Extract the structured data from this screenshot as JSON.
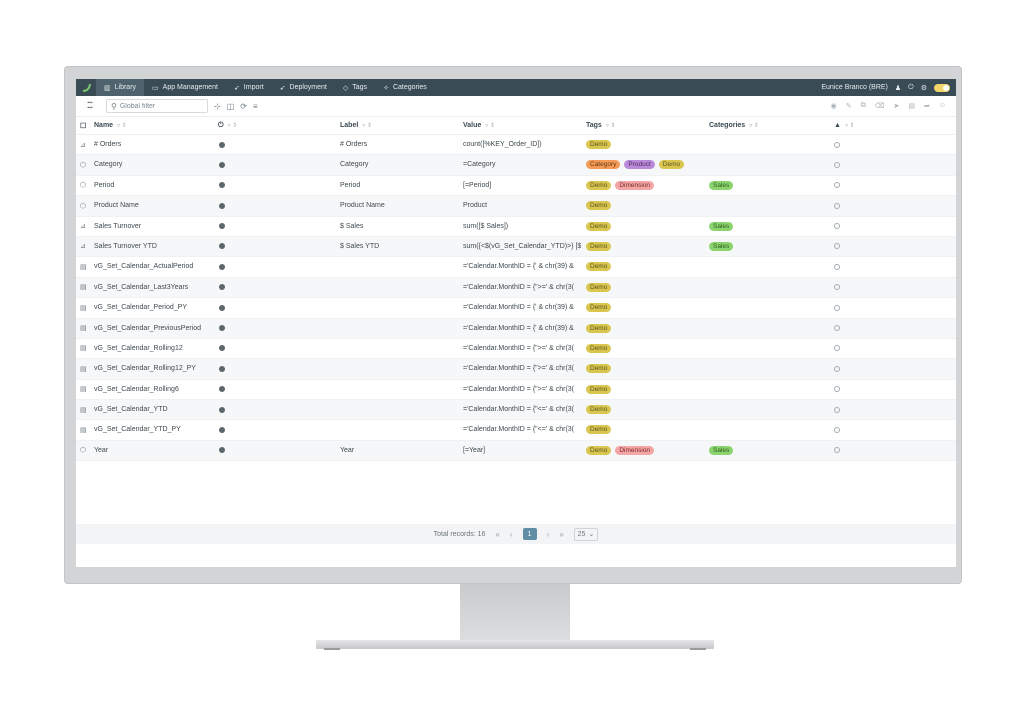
{
  "nav": {
    "items": [
      {
        "label": "Library",
        "icon": "library-icon",
        "active": true
      },
      {
        "label": "App Management",
        "icon": "window-icon",
        "active": false
      },
      {
        "label": "Import",
        "icon": "rocket-icon",
        "active": false
      },
      {
        "label": "Deployment",
        "icon": "rocket-icon",
        "active": false
      },
      {
        "label": "Tags",
        "icon": "tag-icon",
        "active": false
      },
      {
        "label": "Categories",
        "icon": "category-icon",
        "active": false
      }
    ],
    "user": "Eunice Branco (BRE)"
  },
  "toolbar": {
    "search_placeholder": "Global filter"
  },
  "columns": {
    "name": "Name",
    "label": "Label",
    "value": "Value",
    "tags": "Tags",
    "categories": "Categories"
  },
  "rows": [
    {
      "icon": "chart-icon",
      "name": "# Orders",
      "label": "# Orders",
      "value": "count([%KEY_Order_ID])",
      "tags": [
        "Demo"
      ],
      "categories": []
    },
    {
      "icon": "dimension-icon",
      "name": "Category",
      "label": "Category",
      "value": "=Category",
      "tags": [
        "Category",
        "Product",
        "Demo"
      ],
      "categories": []
    },
    {
      "icon": "dimension-icon",
      "name": "Period",
      "label": "Period",
      "value": "[=Period]",
      "tags": [
        "Demo",
        "Dimension"
      ],
      "categories": [
        "Sales"
      ]
    },
    {
      "icon": "dimension-icon",
      "name": "Product Name",
      "label": "Product Name",
      "value": "Product",
      "tags": [
        "Demo"
      ],
      "categories": []
    },
    {
      "icon": "chart-icon",
      "name": "Sales Turnover",
      "label": "$ Sales",
      "value": "sum([$ Sales])",
      "tags": [
        "Demo"
      ],
      "categories": [
        "Sales"
      ]
    },
    {
      "icon": "chart-icon",
      "name": "Sales Turnover YTD",
      "label": "$ Sales YTD",
      "value": "sum({<$(vG_Set_Calendar_YTD)>} [$",
      "tags": [
        "Demo"
      ],
      "categories": [
        "Sales"
      ]
    },
    {
      "icon": "variable-icon",
      "name": "vG_Set_Calendar_ActualPeriod",
      "label": "",
      "value": "='Calendar.MonthID = {' & chr(39) &",
      "tags": [
        "Demo"
      ],
      "categories": []
    },
    {
      "icon": "variable-icon",
      "name": "vG_Set_Calendar_Last3Years",
      "label": "",
      "value": "='Calendar.MonthID = {\">=' & chr(3(",
      "tags": [
        "Demo"
      ],
      "categories": []
    },
    {
      "icon": "variable-icon",
      "name": "vG_Set_Calendar_Period_PY",
      "label": "",
      "value": "='Calendar.MonthID = {' & chr(39) &",
      "tags": [
        "Demo"
      ],
      "categories": []
    },
    {
      "icon": "variable-icon",
      "name": "vG_Set_Calendar_PreviousPeriod",
      "label": "",
      "value": "='Calendar.MonthID = {' & chr(39) &",
      "tags": [
        "Demo"
      ],
      "categories": []
    },
    {
      "icon": "variable-icon",
      "name": "vG_Set_Calendar_Rolling12",
      "label": "",
      "value": "='Calendar.MonthID = {\">=' & chr(3(",
      "tags": [
        "Demo"
      ],
      "categories": []
    },
    {
      "icon": "variable-icon",
      "name": "vG_Set_Calendar_Rolling12_PY",
      "label": "",
      "value": "='Calendar.MonthID = {\">=' & chr(3(",
      "tags": [
        "Demo"
      ],
      "categories": []
    },
    {
      "icon": "variable-icon",
      "name": "vG_Set_Calendar_Rolling6",
      "label": "",
      "value": "='Calendar.MonthID = {\">=' & chr(3(",
      "tags": [
        "Demo"
      ],
      "categories": []
    },
    {
      "icon": "variable-icon",
      "name": "vG_Set_Calendar_YTD",
      "label": "",
      "value": "='Calendar.MonthID = {\"<=' & chr(3(",
      "tags": [
        "Demo"
      ],
      "categories": []
    },
    {
      "icon": "variable-icon",
      "name": "vG_Set_Calendar_YTD_PY",
      "label": "",
      "value": "='Calendar.MonthID = {\"<=' & chr(3(",
      "tags": [
        "Demo"
      ],
      "categories": []
    },
    {
      "icon": "dimension-icon",
      "name": "Year",
      "label": "Year",
      "value": "[=Year]",
      "tags": [
        "Demo",
        "Dimension"
      ],
      "categories": [
        "Sales"
      ]
    }
  ],
  "pagination": {
    "total_label": "Total records: 16",
    "current_page": "1",
    "page_size": "25"
  },
  "colors": {
    "nav_bg": "#394b55",
    "demo": "#d9c64f",
    "category": "#f29a56",
    "product": "#b98bd9",
    "dimension": "#f4a6a6",
    "sales": "#8bd36d",
    "page_active": "#5f8ea5"
  }
}
